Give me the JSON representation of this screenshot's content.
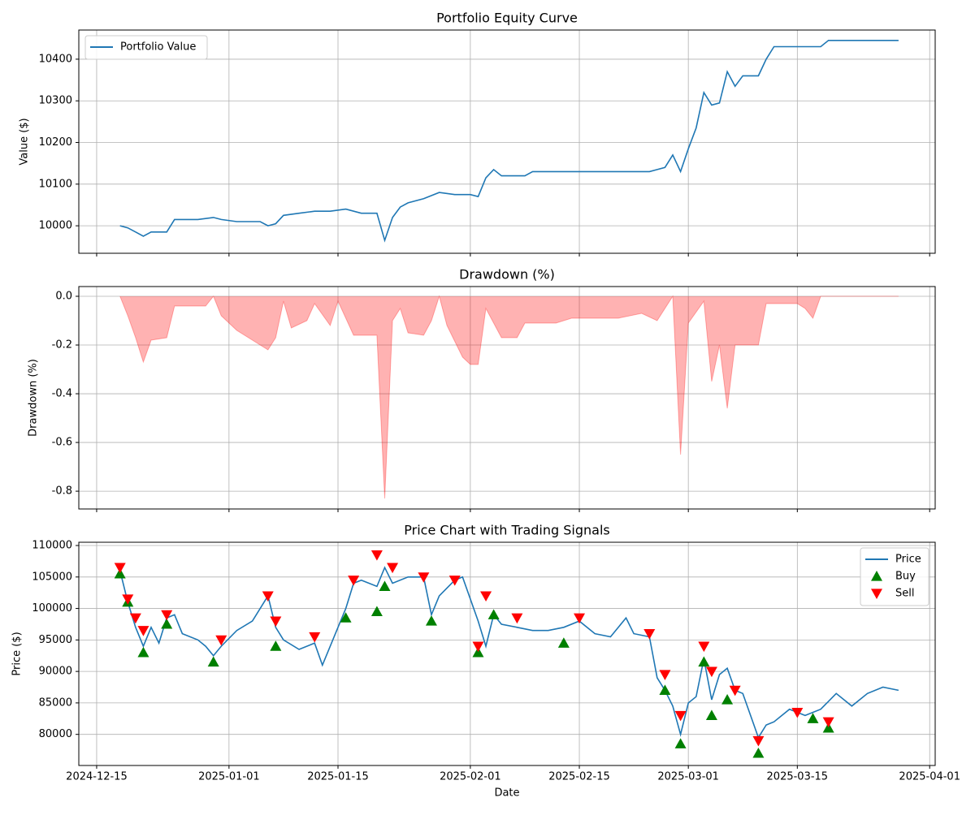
{
  "chart_data": [
    {
      "type": "line",
      "title": "Portfolio Equity Curve",
      "y_label": "Value ($)",
      "ylim": [
        9934,
        10470
      ],
      "yticks": [
        10000,
        10100,
        10200,
        10300,
        10400
      ],
      "grid": true,
      "legend": "upper left",
      "series": [
        {
          "name": "Portfolio Value",
          "color": "#1f77b4",
          "x": [
            "2024-12-18",
            "2024-12-19",
            "2024-12-20",
            "2024-12-21",
            "2024-12-22",
            "2024-12-24",
            "2024-12-25",
            "2024-12-28",
            "2024-12-30",
            "2024-12-31",
            "2025-01-02",
            "2025-01-05",
            "2025-01-06",
            "2025-01-07",
            "2025-01-08",
            "2025-01-10",
            "2025-01-12",
            "2025-01-14",
            "2025-01-16",
            "2025-01-18",
            "2025-01-20",
            "2025-01-21",
            "2025-01-22",
            "2025-01-23",
            "2025-01-24",
            "2025-01-26",
            "2025-01-28",
            "2025-01-30",
            "2025-02-01",
            "2025-02-02",
            "2025-02-03",
            "2025-02-04",
            "2025-02-05",
            "2025-02-08",
            "2025-02-09",
            "2025-02-12",
            "2025-02-15",
            "2025-02-20",
            "2025-02-24",
            "2025-02-25",
            "2025-02-26",
            "2025-02-27",
            "2025-02-28",
            "2025-03-01",
            "2025-03-02",
            "2025-03-03",
            "2025-03-04",
            "2025-03-05",
            "2025-03-06",
            "2025-03-07",
            "2025-03-08",
            "2025-03-10",
            "2025-03-11",
            "2025-03-12",
            "2025-03-15",
            "2025-03-18",
            "2025-03-19",
            "2025-03-24",
            "2025-03-28"
          ],
          "values": [
            10000,
            9995,
            9985,
            9975,
            9985,
            9985,
            10015,
            10015,
            10020,
            10015,
            10010,
            10010,
            10000,
            10005,
            10025,
            10030,
            10035,
            10035,
            10040,
            10030,
            10030,
            9965,
            10020,
            10045,
            10055,
            10065,
            10080,
            10075,
            10075,
            10070,
            10115,
            10135,
            10120,
            10120,
            10130,
            10130,
            10130,
            10130,
            10130,
            10135,
            10140,
            10170,
            10130,
            10185,
            10235,
            10320,
            10290,
            10295,
            10370,
            10335,
            10360,
            10360,
            10400,
            10430,
            10430,
            10430,
            10445,
            10445,
            10445
          ]
        }
      ]
    },
    {
      "type": "area",
      "title": "Drawdown (%)",
      "y_label": "Drawdown (%)",
      "ylim": [
        -0.873,
        0.04
      ],
      "yticks": [
        -0.8,
        -0.6,
        -0.4,
        -0.2,
        {
          "value": 0,
          "label": "0.0"
        }
      ],
      "grid": true,
      "color": "#ff0000",
      "x": [
        "2024-12-18",
        "2024-12-19",
        "2024-12-20",
        "2024-12-21",
        "2024-12-22",
        "2024-12-24",
        "2024-12-25",
        "2024-12-29",
        "2024-12-30",
        "2024-12-31",
        "2025-01-02",
        "2025-01-06",
        "2025-01-07",
        "2025-01-08",
        "2025-01-09",
        "2025-01-11",
        "2025-01-12",
        "2025-01-14",
        "2025-01-15",
        "2025-01-17",
        "2025-01-20",
        "2025-01-21",
        "2025-01-22",
        "2025-01-23",
        "2025-01-24",
        "2025-01-26",
        "2025-01-27",
        "2025-01-28",
        "2025-01-29",
        "2025-01-31",
        "2025-02-01",
        "2025-02-02",
        "2025-02-03",
        "2025-02-05",
        "2025-02-07",
        "2025-02-08",
        "2025-02-12",
        "2025-02-14",
        "2025-02-20",
        "2025-02-23",
        "2025-02-25",
        "2025-02-27",
        "2025-02-28",
        "2025-03-01",
        "2025-03-03",
        "2025-03-04",
        "2025-03-05",
        "2025-03-06",
        "2025-03-07",
        "2025-03-10",
        "2025-03-11",
        "2025-03-15",
        "2025-03-16",
        "2025-03-17",
        "2025-03-18",
        "2025-03-28"
      ],
      "values": [
        0,
        -0.08,
        -0.17,
        -0.27,
        -0.18,
        -0.17,
        -0.04,
        -0.04,
        0,
        -0.08,
        -0.14,
        -0.22,
        -0.17,
        -0.02,
        -0.13,
        -0.1,
        -0.03,
        -0.12,
        -0.02,
        -0.16,
        -0.16,
        -0.83,
        -0.1,
        -0.05,
        -0.15,
        -0.16,
        -0.1,
        0,
        -0.12,
        -0.25,
        -0.28,
        -0.28,
        -0.05,
        -0.17,
        -0.17,
        -0.11,
        -0.11,
        -0.09,
        -0.09,
        -0.07,
        -0.1,
        0,
        -0.65,
        -0.11,
        -0.02,
        -0.35,
        -0.2,
        -0.46,
        -0.2,
        -0.2,
        -0.03,
        -0.03,
        -0.05,
        -0.09,
        0,
        0
      ]
    },
    {
      "type": "line",
      "title": "Price Chart with Trading Signals",
      "y_label": "Price ($)",
      "x_label": "Date",
      "xlim": [
        "2024-12-12T17:00",
        "2025-04-01T17:00"
      ],
      "xticks": [
        "2024-12-15",
        "2025-01-01",
        "2025-01-15",
        "2025-02-01",
        "2025-02-15",
        "2025-03-01",
        "2025-03-15",
        "2025-04-01"
      ],
      "ylim": [
        75060,
        110517
      ],
      "yticks": [
        80000,
        85000,
        90000,
        95000,
        100000,
        105000,
        110000
      ],
      "grid": true,
      "legend": "upper right",
      "series": [
        {
          "name": "Price",
          "color": "#1f77b4",
          "x": [
            "2024-12-18",
            "2024-12-19",
            "2024-12-20",
            "2024-12-21",
            "2024-12-22",
            "2024-12-23",
            "2024-12-24",
            "2024-12-25",
            "2024-12-26",
            "2024-12-28",
            "2024-12-29",
            "2024-12-30",
            "2024-12-31",
            "2025-01-02",
            "2025-01-04",
            "2025-01-06",
            "2025-01-07",
            "2025-01-08",
            "2025-01-10",
            "2025-01-12",
            "2025-01-13",
            "2025-01-15",
            "2025-01-16",
            "2025-01-17",
            "2025-01-18",
            "2025-01-20",
            "2025-01-21",
            "2025-01-22",
            "2025-01-24",
            "2025-01-26",
            "2025-01-27",
            "2025-01-28",
            "2025-01-30",
            "2025-01-31",
            "2025-02-02",
            "2025-02-03",
            "2025-02-04",
            "2025-02-05",
            "2025-02-07",
            "2025-02-09",
            "2025-02-11",
            "2025-02-13",
            "2025-02-15",
            "2025-02-17",
            "2025-02-19",
            "2025-02-21",
            "2025-02-22",
            "2025-02-24",
            "2025-02-25",
            "2025-02-26",
            "2025-02-27",
            "2025-02-28",
            "2025-03-01",
            "2025-03-02",
            "2025-03-03",
            "2025-03-04",
            "2025-03-05",
            "2025-03-06",
            "2025-03-07",
            "2025-03-08",
            "2025-03-10",
            "2025-03-11",
            "2025-03-12",
            "2025-03-14",
            "2025-03-16",
            "2025-03-18",
            "2025-03-20",
            "2025-03-22",
            "2025-03-24",
            "2025-03-26",
            "2025-03-28"
          ],
          "values": [
            106000,
            101000,
            97000,
            94000,
            97000,
            94500,
            98500,
            99000,
            96000,
            95000,
            94000,
            92500,
            94000,
            96500,
            98000,
            102000,
            97000,
            95000,
            93500,
            94500,
            91000,
            97000,
            100000,
            104000,
            104500,
            103500,
            106500,
            104000,
            105000,
            105000,
            99000,
            102000,
            104500,
            105000,
            98000,
            94000,
            99000,
            97500,
            97000,
            96500,
            96500,
            97000,
            98000,
            96000,
            95500,
            98500,
            96000,
            95500,
            89000,
            87000,
            84500,
            80000,
            85000,
            86000,
            92000,
            85500,
            89500,
            90500,
            87000,
            86500,
            79500,
            81500,
            82000,
            84000,
            83000,
            84000,
            86500,
            84500,
            86500,
            87500,
            87000
          ]
        },
        {
          "name": "Buy",
          "color": "#008000",
          "marker": "triangle-up",
          "x": [
            "2024-12-18",
            "2024-12-19",
            "2024-12-21",
            "2024-12-24",
            "2024-12-30",
            "2025-01-07",
            "2025-01-16",
            "2025-01-20",
            "2025-01-21",
            "2025-01-27",
            "2025-02-02",
            "2025-02-04",
            "2025-02-13",
            "2025-02-26",
            "2025-02-28",
            "2025-03-03",
            "2025-03-04",
            "2025-03-06",
            "2025-03-10",
            "2025-03-17",
            "2025-03-19"
          ],
          "values": [
            105500,
            101000,
            93000,
            97500,
            91500,
            94000,
            98500,
            99500,
            103500,
            98000,
            93000,
            99000,
            94500,
            87000,
            78500,
            91500,
            83000,
            85500,
            77000,
            82500,
            81000
          ]
        },
        {
          "name": "Sell",
          "color": "#ff0000",
          "marker": "triangle-down",
          "x": [
            "2024-12-18",
            "2024-12-19",
            "2024-12-20",
            "2024-12-21",
            "2024-12-24",
            "2024-12-31",
            "2025-01-06",
            "2025-01-07",
            "2025-01-12",
            "2025-01-17",
            "2025-01-20",
            "2025-01-22",
            "2025-01-26",
            "2025-01-30",
            "2025-02-02",
            "2025-02-03",
            "2025-02-07",
            "2025-02-15",
            "2025-02-24",
            "2025-02-26",
            "2025-02-28",
            "2025-03-03",
            "2025-03-04",
            "2025-03-07",
            "2025-03-10",
            "2025-03-15",
            "2025-03-19"
          ],
          "values": [
            106500,
            101500,
            98500,
            96500,
            99000,
            95000,
            102000,
            98000,
            95500,
            104500,
            108500,
            106500,
            105000,
            104500,
            94000,
            102000,
            98500,
            98500,
            96000,
            89500,
            83000,
            94000,
            90000,
            87000,
            79000,
            83500,
            82000
          ]
        }
      ]
    }
  ]
}
